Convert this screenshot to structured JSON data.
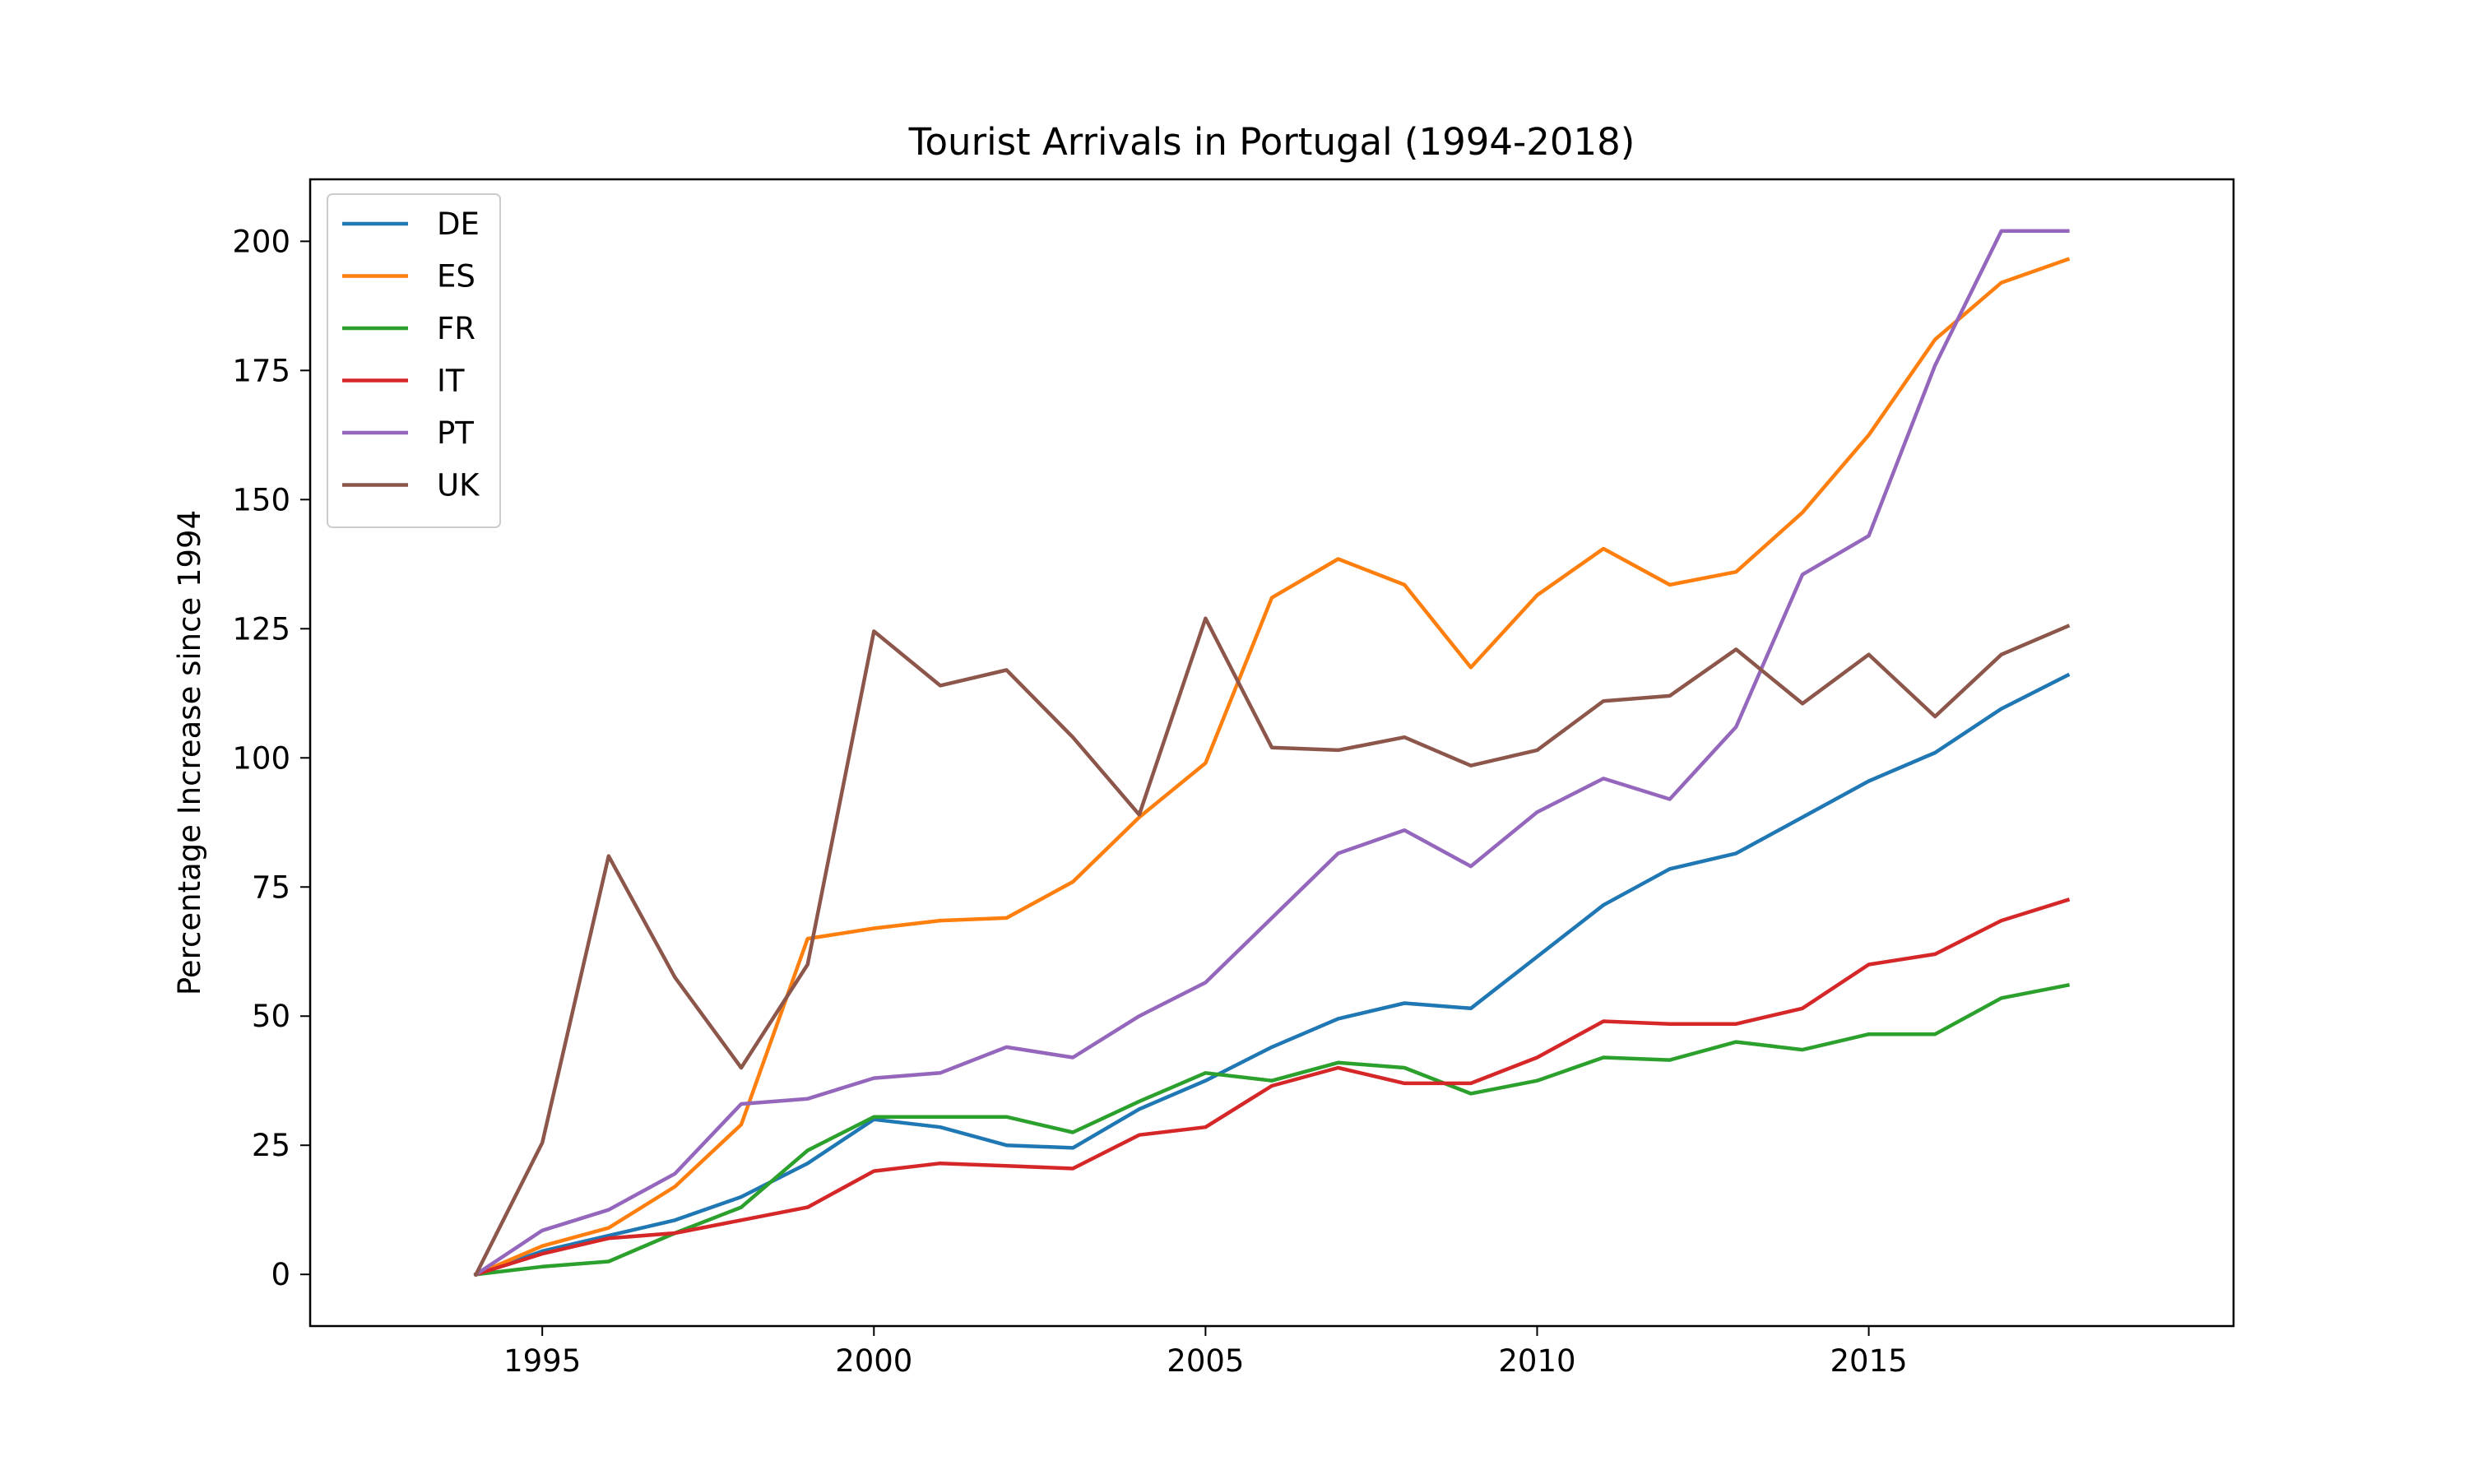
{
  "chart_data": {
    "type": "line",
    "title": "Tourist Arrivals in Portugal (1994-2018)",
    "xlabel": "",
    "ylabel": "Percentage Increase since 1994",
    "xlim": [
      1991.5,
      2020.5
    ],
    "ylim": [
      -10,
      212
    ],
    "xticks": [
      1995,
      2000,
      2005,
      2010,
      2015
    ],
    "yticks": [
      0,
      25,
      50,
      75,
      100,
      125,
      150,
      175,
      200
    ],
    "grid": false,
    "legend_position": "top-left",
    "x": [
      1994,
      1995,
      1996,
      1997,
      1998,
      1999,
      2000,
      2001,
      2002,
      2003,
      2004,
      2005,
      2006,
      2007,
      2008,
      2009,
      2010,
      2011,
      2012,
      2013,
      2014,
      2015,
      2016,
      2017,
      2018
    ],
    "series": [
      {
        "name": "DE",
        "color": "#1f77b4",
        "values": [
          0,
          4.5,
          7.5,
          10.5,
          15,
          21.5,
          30,
          28.5,
          25,
          24.5,
          32,
          37.5,
          44,
          49.5,
          52.5,
          51.5,
          61.5,
          71.5,
          78.5,
          81.5,
          88.5,
          95.5,
          101,
          109.5,
          116
        ]
      },
      {
        "name": "ES",
        "color": "#ff7f0e",
        "values": [
          0,
          5.5,
          9,
          17,
          29,
          65,
          67,
          68.5,
          69,
          76,
          88.5,
          99,
          131,
          138.5,
          133.5,
          117.5,
          131.5,
          140.5,
          133.5,
          136,
          147.5,
          162.5,
          181,
          192,
          196.5
        ]
      },
      {
        "name": "FR",
        "color": "#2ca02c",
        "values": [
          0,
          1.5,
          2.5,
          8,
          13,
          24,
          30.5,
          30.5,
          30.5,
          27.5,
          33.5,
          39,
          37.5,
          41,
          40,
          35,
          37.5,
          42,
          41.5,
          45,
          43.5,
          46.5,
          46.5,
          53.5,
          56
        ]
      },
      {
        "name": "IT",
        "color": "#d62728",
        "values": [
          0,
          4,
          7,
          8,
          10.5,
          13,
          20,
          21.5,
          21,
          20.5,
          27,
          28.5,
          36.5,
          40,
          37,
          37,
          42,
          49,
          48.5,
          48.5,
          51.5,
          60,
          62,
          68.5,
          72.5
        ]
      },
      {
        "name": "PT",
        "color": "#9467bd",
        "values": [
          0,
          8.5,
          12.5,
          19.5,
          33,
          34,
          38,
          39,
          44,
          42,
          50,
          56.5,
          69,
          81.5,
          86,
          79,
          89.5,
          96,
          92,
          106,
          135.5,
          143,
          176,
          202,
          202
        ]
      },
      {
        "name": "UK",
        "color": "#8c564b",
        "values": [
          0,
          25.5,
          81,
          57.5,
          40,
          60,
          124.5,
          114,
          117,
          104,
          89,
          127,
          102,
          101.5,
          104,
          98.5,
          101.5,
          111,
          112,
          121,
          110.5,
          120,
          108,
          120,
          125.5
        ]
      }
    ]
  }
}
